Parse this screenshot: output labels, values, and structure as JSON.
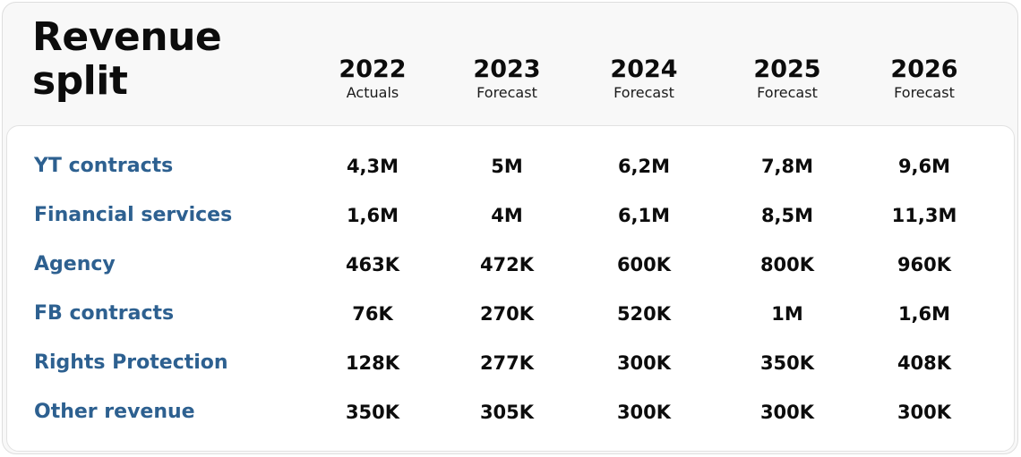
{
  "chart_data": {
    "type": "table",
    "title": "Revenue split",
    "title_lines": [
      "Revenue",
      "split"
    ],
    "columns": [
      {
        "year": "2022",
        "label": "Actuals"
      },
      {
        "year": "2023",
        "label": "Forecast"
      },
      {
        "year": "2024",
        "label": "Forecast"
      },
      {
        "year": "2025",
        "label": "Forecast"
      },
      {
        "year": "2026",
        "label": "Forecast"
      }
    ],
    "rows": [
      {
        "label": "YT contracts",
        "values": [
          "4,3M",
          "5M",
          "6,2M",
          "7,8M",
          "9,6M"
        ]
      },
      {
        "label": "Financial services",
        "values": [
          "1,6M",
          "4M",
          "6,1M",
          "8,5M",
          "11,3M"
        ]
      },
      {
        "label": "Agency",
        "values": [
          "463K",
          "472K",
          "600K",
          "800K",
          "960K"
        ]
      },
      {
        "label": "FB contracts",
        "values": [
          "76K",
          "270K",
          "520K",
          "1M",
          "1,6M"
        ]
      },
      {
        "label": "Rights Protection",
        "values": [
          "128K",
          "277K",
          "300K",
          "350K",
          "408K"
        ]
      },
      {
        "label": "Other revenue",
        "values": [
          "350K",
          "305K",
          "300K",
          "300K",
          "300K"
        ]
      }
    ]
  },
  "colors": {
    "row_label": "#2d6090",
    "text": "#0c0c0c",
    "card_background": "#f8f8f8",
    "panel_background": "#ffffff"
  }
}
